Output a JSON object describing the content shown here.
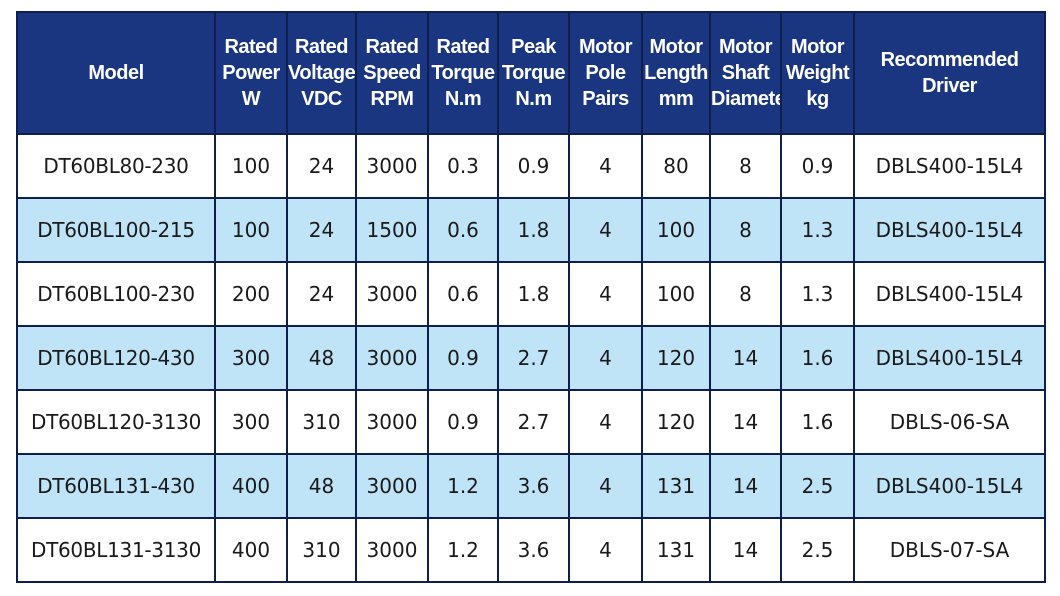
{
  "table": {
    "headers": [
      [
        "Model"
      ],
      [
        "Rated",
        "Power",
        "W"
      ],
      [
        "Rated",
        "Voltage",
        "VDC"
      ],
      [
        "Rated",
        "Speed",
        "RPM"
      ],
      [
        "Rated",
        "Torque",
        "N.m"
      ],
      [
        "Peak",
        "Torque",
        "N.m"
      ],
      [
        "Motor",
        "Pole",
        "Pairs"
      ],
      [
        "Motor",
        "Length",
        "mm"
      ],
      [
        "Motor",
        "Shaft",
        "Diameter"
      ],
      [
        "Motor",
        "Weight",
        "kg"
      ],
      [
        "Recommended",
        "Driver"
      ]
    ],
    "rows": [
      [
        "DT60BL80-230",
        "100",
        "24",
        "3000",
        "0.3",
        "0.9",
        "4",
        "80",
        "8",
        "0.9",
        "DBLS400-15L4"
      ],
      [
        "DT60BL100-215",
        "100",
        "24",
        "1500",
        "0.6",
        "1.8",
        "4",
        "100",
        "8",
        "1.3",
        "DBLS400-15L4"
      ],
      [
        "DT60BL100-230",
        "200",
        "24",
        "3000",
        "0.6",
        "1.8",
        "4",
        "100",
        "8",
        "1.3",
        "DBLS400-15L4"
      ],
      [
        "DT60BL120-430",
        "300",
        "48",
        "3000",
        "0.9",
        "2.7",
        "4",
        "120",
        "14",
        "1.6",
        "DBLS400-15L4"
      ],
      [
        "DT60BL120-3130",
        "300",
        "310",
        "3000",
        "0.9",
        "2.7",
        "4",
        "120",
        "14",
        "1.6",
        "DBLS-06-SA"
      ],
      [
        "DT60BL131-430",
        "400",
        "48",
        "3000",
        "1.2",
        "3.6",
        "4",
        "131",
        "14",
        "2.5",
        "DBLS400-15L4"
      ],
      [
        "DT60BL131-3130",
        "400",
        "310",
        "3000",
        "1.2",
        "3.6",
        "4",
        "131",
        "14",
        "2.5",
        "DBLS-07-SA"
      ]
    ]
  },
  "colors": {
    "header_bg": "#1a3680",
    "header_text": "#ffffff",
    "row_alt_bg": "#bfe3f7",
    "row_bg": "#ffffff",
    "border": "#0e1f4e"
  }
}
